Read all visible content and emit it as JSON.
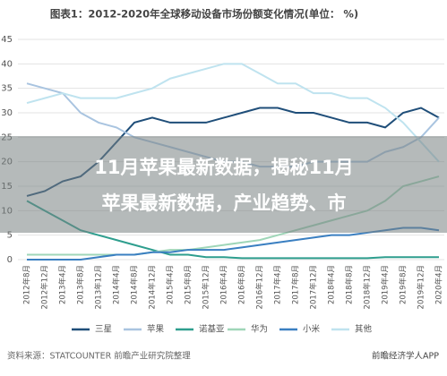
{
  "chart_data": {
    "type": "line",
    "title": "图表1：2012-2020年全球移动设备市场份额变化情况(单位：  %)",
    "categories": [
      "2012年8月",
      "2012年12月",
      "2013年4月",
      "2013年8月",
      "2013年12月",
      "2014年4月",
      "2014年8月",
      "2014年12月",
      "2015年4月",
      "2015年8月",
      "2015年12月",
      "2016年4月",
      "2016年8月",
      "2016年12月",
      "2017年4月",
      "2017年8月",
      "2017年12月",
      "2018年4月",
      "2018年8月",
      "2018年12月",
      "2019年4月",
      "2019年8月",
      "2019年12月",
      "2020年4月"
    ],
    "series": [
      {
        "name": "三星",
        "color": "#1f4e79",
        "values": [
          13,
          14,
          16,
          17,
          20,
          24,
          28,
          29,
          28,
          28,
          28,
          29,
          30,
          31,
          31,
          30,
          30,
          29,
          28,
          28,
          27,
          30,
          31,
          29
        ]
      },
      {
        "name": "苹果",
        "color": "#a9c4e0",
        "values": [
          36,
          35,
          34,
          30,
          28,
          27,
          25,
          24,
          23,
          22,
          21,
          20,
          20,
          19,
          19,
          19,
          20,
          20,
          20,
          20,
          22,
          23,
          25,
          29
        ]
      },
      {
        "name": "诺基亚",
        "color": "#2e9e8e",
        "values": [
          12,
          10,
          8,
          6,
          5,
          4,
          3,
          2,
          1,
          1,
          0.5,
          0.5,
          0.3,
          0.3,
          0.3,
          0.3,
          0.3,
          0.3,
          0.3,
          0.3,
          0.5,
          0.5,
          0.5,
          0.5
        ]
      },
      {
        "name": "华为",
        "color": "#9fd6b8",
        "values": [
          1,
          1,
          1,
          1,
          1,
          1,
          1,
          1.5,
          2,
          2,
          2.5,
          3,
          3.5,
          4,
          5,
          6,
          7,
          8,
          9,
          10,
          12,
          15,
          16,
          17
        ]
      },
      {
        "name": "小米",
        "color": "#3a7fc1",
        "values": [
          0,
          0,
          0,
          0,
          0.5,
          1,
          1,
          1.5,
          1.5,
          2,
          2,
          2,
          2.5,
          3,
          3.5,
          4,
          4.5,
          5,
          5,
          5.5,
          6,
          6.5,
          6.5,
          6
        ]
      },
      {
        "name": "其他",
        "color": "#bfe3ef",
        "values": [
          32,
          33,
          34,
          33,
          33,
          33,
          34,
          35,
          37,
          38,
          39,
          40,
          40,
          38,
          36,
          36,
          34,
          34,
          33,
          33,
          31,
          28,
          24,
          20
        ]
      }
    ],
    "ylim": [
      0,
      45
    ],
    "yticks": [
      0,
      5,
      10,
      15,
      20,
      25,
      30,
      35,
      40,
      45
    ],
    "grid": true,
    "source": "资料来源：STATCOUNTER 前瞻产业研究院整理",
    "brand": "前瞻经济学人APP"
  },
  "banner": {
    "lines": [
      "11月苹果最新数据，揭秘11月",
      "苹果最新数据，产业趋势、市"
    ]
  }
}
